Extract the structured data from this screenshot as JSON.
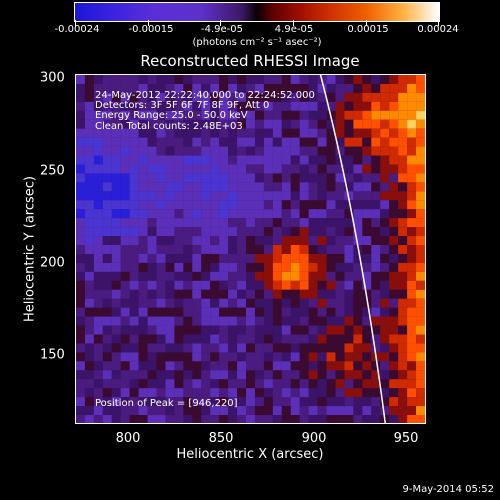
{
  "colorbar": {
    "tick_labels": [
      "-0.00024",
      "-0.00015",
      "-4.9e-05",
      "4.9e-05",
      "0.00015",
      "0.00024"
    ],
    "units_label": "(photons cm⁻² s⁻¹ asec⁻²)"
  },
  "title": "Reconstructed RHESSI Image",
  "info": {
    "time_range": "24-May-2012 22:22:40.000 to 22:24:52.000",
    "detectors": "Detectors: 3F 5F 6F 7F 8F 9F, Att 0",
    "energy": "Energy Range: 25.0 - 50.0 keV",
    "clean": "Clean     Total counts: 2.48E+03",
    "peak": "Position of Peak = [946,220]"
  },
  "x_axis": {
    "label": "Heliocentric X (arcsec)",
    "ticks": [
      "800",
      "850",
      "900",
      "950"
    ]
  },
  "y_axis": {
    "label": "Heliocentric Y (arcsec)",
    "ticks": [
      "300",
      "250",
      "200",
      "150"
    ]
  },
  "footer_date": "9-May-2014 05:52",
  "colors": {
    "negative": "#2a1fd8",
    "background": "#3b1368",
    "hot": "#ff5a00",
    "peak": "#ffd060",
    "limb": "#ffffff"
  }
}
